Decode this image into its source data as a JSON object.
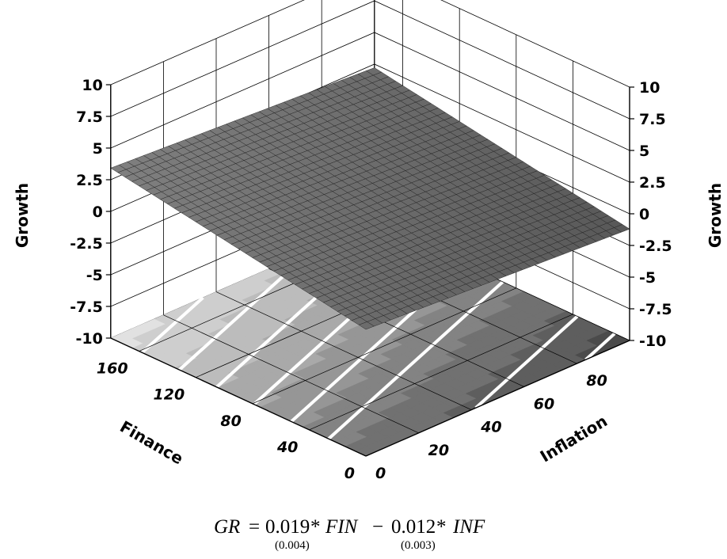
{
  "chart_data": {
    "type": "surface3d",
    "surface": {
      "equation": "Growth = 0.019*Finance - 0.012*Inflation",
      "coef_finance": 0.019,
      "coef_inflation": -0.012,
      "intercept": 0
    },
    "axes": {
      "finance": {
        "label": "Finance",
        "range": [
          0,
          180
        ],
        "ticks": [
          "0",
          "40",
          "80",
          "120",
          "160"
        ],
        "tick_values": [
          0,
          40,
          80,
          120,
          160
        ]
      },
      "inflation": {
        "label": "Inflation",
        "range": [
          0,
          100
        ],
        "ticks": [
          "0",
          "20",
          "40",
          "60",
          "80"
        ],
        "tick_values": [
          0,
          20,
          40,
          60,
          80
        ]
      },
      "growth": {
        "label": "Growth",
        "range": [
          -10,
          10
        ],
        "ticks": [
          "10",
          "7.5",
          "5",
          "2.5",
          "0",
          "-2.5",
          "-5",
          "-7.5",
          "-10"
        ],
        "tick_values": [
          10,
          7.5,
          5,
          2.5,
          0,
          -2.5,
          -5,
          -7.5,
          -10
        ]
      }
    },
    "grid": true,
    "floor_contours": true,
    "surface_color": "#707070",
    "mesh_color": "#222222"
  },
  "equation": {
    "lhs": "GR",
    "eq": "=",
    "coef1": "0.019",
    "se1": "(0.004)",
    "star1": "*",
    "var1": "FIN",
    "minus": "−",
    "coef2": "0.012",
    "se2": "(0.003)",
    "star2": "*",
    "var2": "INF"
  }
}
